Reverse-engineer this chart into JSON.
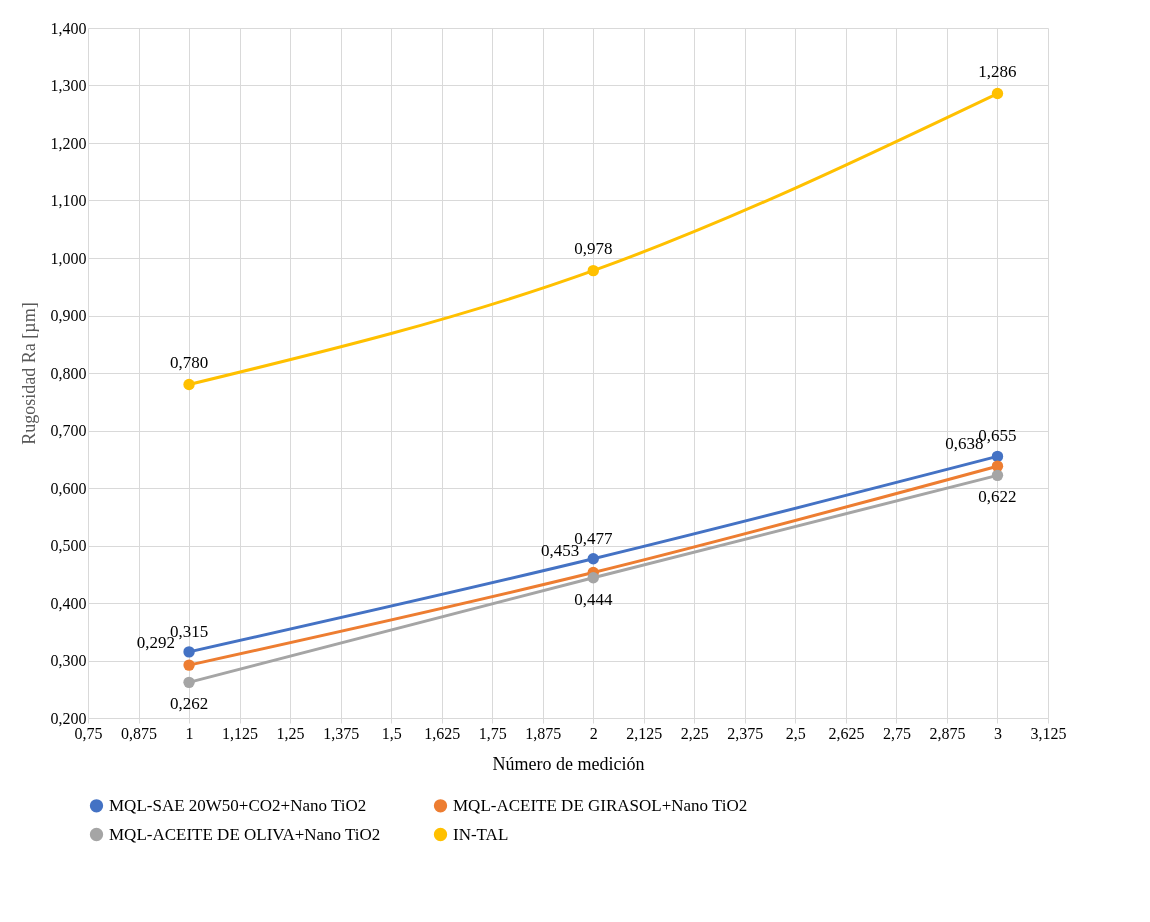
{
  "chart_data": {
    "type": "line",
    "xlabel": "Número de medición",
    "ylabel": "Rugosidad Ra [µm]",
    "x": [
      1,
      2,
      3
    ],
    "series": [
      {
        "name": "MQL-SAE 20W50+CO2+Nano TiO2",
        "color": "#4472c4",
        "values": [
          0.315,
          0.477,
          0.655
        ],
        "value_labels": [
          "0,315",
          "0,477",
          "0,655"
        ]
      },
      {
        "name": "MQL-ACEITE DE GIRASOL+Nano TiO2",
        "color": "#ed7d31",
        "values": [
          0.292,
          0.453,
          0.638
        ],
        "value_labels": [
          "0,292",
          "0,453",
          "0,638"
        ]
      },
      {
        "name": "MQL-ACEITE DE OLIVA+Nano TiO2",
        "color": "#a5a5a5",
        "values": [
          0.262,
          0.444,
          0.622
        ],
        "value_labels": [
          "0,262",
          "0,444",
          "0,622"
        ]
      },
      {
        "name": "IN-TAL",
        "color": "#ffc000",
        "values": [
          0.78,
          0.978,
          1.286
        ],
        "value_labels": [
          "0,780",
          "0,978",
          "1,286"
        ]
      }
    ],
    "xlim": [
      0.75,
      3.125
    ],
    "xticks": [
      {
        "value": 0.75,
        "label": "0,75"
      },
      {
        "value": 0.875,
        "label": "0,875"
      },
      1,
      {
        "value": 1.125,
        "label": "1,125"
      },
      {
        "value": 1.25,
        "label": "1,25"
      },
      {
        "value": 1.375,
        "label": "1,375"
      },
      {
        "value": 1.5,
        "label": "1,5"
      },
      {
        "value": 1.625,
        "label": "1,625"
      },
      {
        "value": 1.75,
        "label": "1,75"
      },
      {
        "value": 1.875,
        "label": "1,875"
      },
      2,
      {
        "value": 2.125,
        "label": "2,125"
      },
      {
        "value": 2.25,
        "label": "2,25"
      },
      {
        "value": 2.375,
        "label": "2,375"
      },
      {
        "value": 2.5,
        "label": "2,5"
      },
      {
        "value": 2.625,
        "label": "2,625"
      },
      {
        "value": 2.75,
        "label": "2,75"
      },
      {
        "value": 2.875,
        "label": "2,875"
      },
      3,
      {
        "value": 3.125,
        "label": "3,125"
      }
    ],
    "ylim": [
      0.2,
      1.4
    ],
    "yticks": [
      {
        "value": 0.2,
        "label": "0,200"
      },
      {
        "value": 0.3,
        "label": "0,300"
      },
      {
        "value": 0.4,
        "label": "0,400"
      },
      {
        "value": 0.5,
        "label": "0,500"
      },
      {
        "value": 0.6,
        "label": "0,600"
      },
      {
        "value": 0.7,
        "label": "0,700"
      },
      {
        "value": 0.8,
        "label": "0,800"
      },
      {
        "value": 0.9,
        "label": "0,900"
      },
      {
        "value": 1.0,
        "label": "1,000"
      },
      {
        "value": 1.1,
        "label": "1,100"
      },
      {
        "value": 1.2,
        "label": "1,200"
      },
      {
        "value": 1.3,
        "label": "1,300"
      },
      {
        "value": 1.4,
        "label": "1,400"
      }
    ],
    "grid": true,
    "legend": "bottom",
    "marker": "circle",
    "line_style": "solid"
  }
}
